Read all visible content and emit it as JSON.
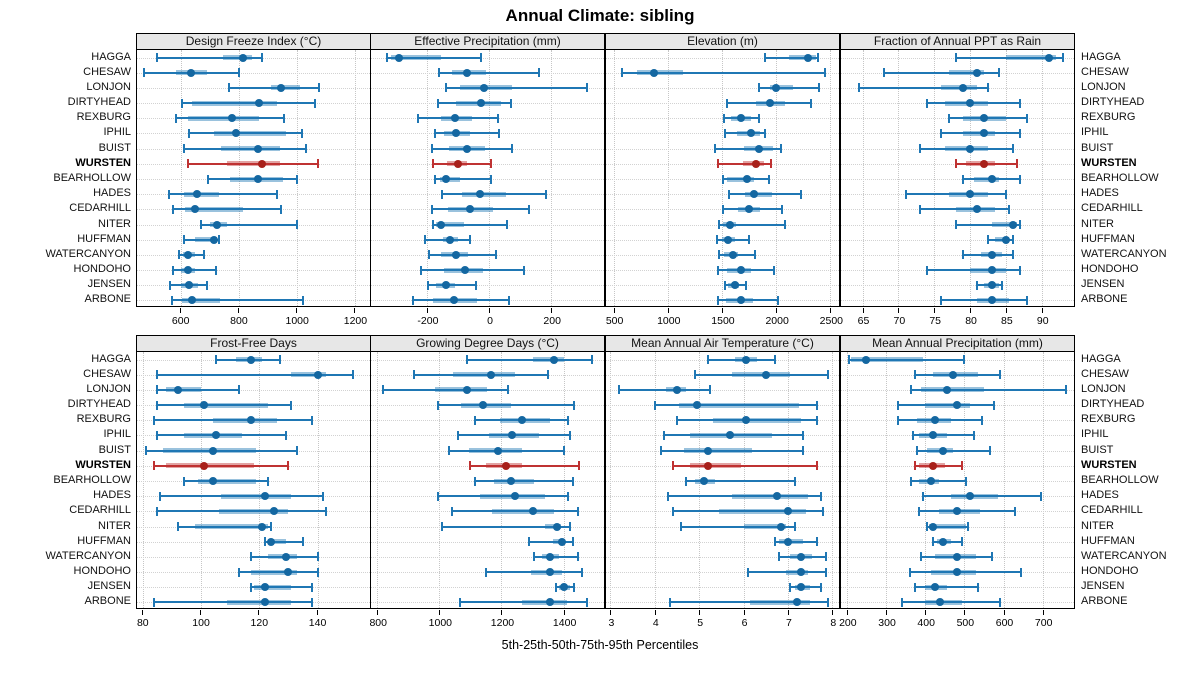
{
  "title": "Annual Climate: sibling",
  "caption": "5th-25th-50th-75th-95th Percentiles",
  "colors": {
    "normal_line": "#1f77b4",
    "normal_band": "rgba(31,119,180,0.45)",
    "normal_dot": "#1467a1",
    "highlight_line": "#bf3232",
    "highlight_band": "rgba(191,50,50,0.45)",
    "highlight_dot": "#a8201a",
    "header_bg": "#e7e7e7",
    "gridline": "#c6c6c6"
  },
  "sites": [
    "HAGGA",
    "CHESAW",
    "LONJON",
    "DIRTYHEAD",
    "REXBURG",
    "IPHIL",
    "BUIST",
    "WURSTEN",
    "BEARHOLLOW",
    "HADES",
    "CEDARHILL",
    "NITER",
    "HUFFMAN",
    "WATERCANYON",
    "HONDOHO",
    "JENSEN",
    "ARBONE"
  ],
  "highlight_site": "WURSTEN",
  "chart_data": {
    "type": "dotplot-percentiles",
    "percentile_labels": [
      "5th",
      "25th",
      "50th",
      "75th",
      "95th"
    ],
    "legend_position": "none",
    "grid": "dotted",
    "panels": [
      {
        "title": "Design Freeze Index (°C)",
        "row": 0,
        "col": 0,
        "xlim": [
          450,
          1250
        ],
        "ticks": [
          600,
          800,
          1000,
          1200
        ],
        "values": [
          [
            520,
            745,
            815,
            845,
            880
          ],
          [
            475,
            585,
            635,
            690,
            800
          ],
          [
            765,
            910,
            945,
            1010,
            1075
          ],
          [
            605,
            640,
            870,
            930,
            1060
          ],
          [
            585,
            625,
            775,
            870,
            955
          ],
          [
            630,
            715,
            790,
            960,
            1015
          ],
          [
            610,
            740,
            865,
            940,
            1030
          ],
          [
            625,
            760,
            880,
            940,
            1070
          ],
          [
            695,
            770,
            865,
            950,
            1000
          ],
          [
            560,
            610,
            655,
            730,
            930
          ],
          [
            575,
            615,
            650,
            815,
            945
          ],
          [
            670,
            700,
            725,
            760,
            1000
          ],
          [
            610,
            650,
            715,
            725,
            730
          ],
          [
            595,
            607,
            625,
            650,
            680
          ],
          [
            575,
            600,
            625,
            650,
            720
          ],
          [
            565,
            600,
            630,
            660,
            690
          ],
          [
            570,
            605,
            640,
            735,
            1020
          ]
        ]
      },
      {
        "title": "Effective Precipitation (mm)",
        "row": 0,
        "col": 1,
        "xlim": [
          -380,
          370
        ],
        "ticks": [
          -200,
          0,
          200
        ],
        "values": [
          [
            -330,
            -315,
            -290,
            -155,
            -25
          ],
          [
            -160,
            -120,
            -70,
            -10,
            160
          ],
          [
            -140,
            -95,
            -15,
            73,
            315
          ],
          [
            -165,
            -105,
            -25,
            38,
            70
          ],
          [
            -230,
            -155,
            -110,
            -55,
            28
          ],
          [
            -175,
            -145,
            -105,
            -60,
            33
          ],
          [
            -185,
            -128,
            -70,
            -13,
            73
          ],
          [
            -180,
            -135,
            -100,
            -70,
            5
          ],
          [
            -175,
            -158,
            -138,
            -93,
            5
          ],
          [
            -150,
            -86,
            -30,
            54,
            182
          ],
          [
            -185,
            -133,
            -60,
            12,
            130
          ],
          [
            -180,
            -170,
            -155,
            -80,
            59
          ],
          [
            -205,
            -148,
            -125,
            -100,
            -62
          ],
          [
            -192,
            -155,
            -105,
            -68,
            23
          ],
          [
            -220,
            -145,
            -78,
            -19,
            111
          ],
          [
            -195,
            -170,
            -138,
            -109,
            -42
          ],
          [
            -244,
            -180,
            -112,
            -40,
            64
          ]
        ]
      },
      {
        "title": "Elevation (m)",
        "row": 0,
        "col": 2,
        "xlim": [
          430,
          2580
        ],
        "ticks": [
          500,
          1000,
          1500,
          2000,
          2500
        ],
        "values": [
          [
            1900,
            2115,
            2295,
            2365,
            2385
          ],
          [
            575,
            720,
            870,
            1145,
            2455
          ],
          [
            1840,
            1945,
            1995,
            2155,
            2400
          ],
          [
            1545,
            1815,
            1940,
            2085,
            2325
          ],
          [
            1515,
            1585,
            1675,
            1770,
            1845
          ],
          [
            1525,
            1635,
            1765,
            1855,
            1900
          ],
          [
            1440,
            1705,
            1840,
            1975,
            2045
          ],
          [
            1460,
            1690,
            1810,
            1890,
            1950
          ],
          [
            1505,
            1545,
            1735,
            1800,
            1935
          ],
          [
            1565,
            1710,
            1800,
            1960,
            2230
          ],
          [
            1505,
            1645,
            1745,
            1855,
            2050
          ],
          [
            1470,
            1510,
            1575,
            1630,
            2085
          ],
          [
            1450,
            1500,
            1560,
            1620,
            1745
          ],
          [
            1470,
            1515,
            1600,
            1650,
            1805
          ],
          [
            1465,
            1545,
            1675,
            1770,
            1980
          ],
          [
            1530,
            1560,
            1620,
            1660,
            1725
          ],
          [
            1460,
            1540,
            1675,
            1785,
            2020
          ]
        ]
      },
      {
        "title": "Fraction of Annual PPT as Rain",
        "row": 0,
        "col": 3,
        "xlim": [
          62,
          94.5
        ],
        "ticks": [
          65,
          70,
          75,
          80,
          85,
          90
        ],
        "values": [
          [
            78,
            85,
            91,
            92,
            93
          ],
          [
            68,
            77,
            81,
            82,
            84
          ],
          [
            64.5,
            76,
            79,
            81,
            82.5
          ],
          [
            74,
            76.5,
            80,
            82.5,
            87
          ],
          [
            77,
            79,
            82,
            85,
            88
          ],
          [
            76,
            79,
            82,
            83.5,
            87
          ],
          [
            73,
            76.5,
            80,
            82.5,
            86
          ],
          [
            78,
            79.5,
            82,
            83.5,
            86.5
          ],
          [
            79,
            80.5,
            83,
            84,
            87
          ],
          [
            71,
            77,
            80,
            82.5,
            85
          ],
          [
            73,
            78,
            81,
            83.5,
            85.5
          ],
          [
            78,
            83,
            86,
            86.5,
            87
          ],
          [
            82.5,
            83.5,
            85,
            85.5,
            86
          ],
          [
            79,
            81.5,
            83,
            84.5,
            86
          ],
          [
            74,
            80,
            83,
            85,
            87
          ],
          [
            81,
            82,
            83,
            84,
            84.5
          ],
          [
            76,
            81,
            83,
            85.5,
            88
          ]
        ]
      },
      {
        "title": "Frost-Free Days",
        "row": 1,
        "col": 0,
        "xlim": [
          78,
          158
        ],
        "ticks": [
          80,
          100,
          120,
          140
        ],
        "values": [
          [
            105,
            112,
            117,
            121,
            127
          ],
          [
            85,
            131,
            140,
            143,
            152
          ],
          [
            85,
            88,
            92,
            100,
            113
          ],
          [
            85,
            94,
            101,
            123,
            131
          ],
          [
            84,
            104,
            117,
            126,
            138
          ],
          [
            85,
            94,
            105,
            114,
            129
          ],
          [
            81,
            87,
            104,
            119,
            133
          ],
          [
            84,
            88,
            101,
            118,
            130
          ],
          [
            94,
            99,
            104,
            119,
            123
          ],
          [
            86,
            107,
            122,
            131,
            142
          ],
          [
            85,
            106,
            125,
            130,
            143
          ],
          [
            92,
            98,
            121,
            123,
            124
          ],
          [
            122,
            123,
            124,
            129,
            135
          ],
          [
            117,
            123,
            129,
            133,
            140
          ],
          [
            113,
            117,
            130,
            133,
            140
          ],
          [
            117,
            118,
            122,
            131,
            138
          ],
          [
            84,
            109,
            122,
            131,
            138
          ]
        ]
      },
      {
        "title": "Growing Degree Days (°C)",
        "row": 1,
        "col": 1,
        "xlim": [
          780,
          1530
        ],
        "ticks": [
          800,
          1000,
          1200,
          1400
        ],
        "values": [
          [
            1090,
            1300,
            1370,
            1400,
            1490
          ],
          [
            920,
            1045,
            1165,
            1245,
            1350
          ],
          [
            820,
            985,
            1090,
            1155,
            1220
          ],
          [
            995,
            1070,
            1140,
            1230,
            1435
          ],
          [
            1115,
            1195,
            1265,
            1355,
            1415
          ],
          [
            1060,
            1160,
            1235,
            1320,
            1420
          ],
          [
            1030,
            1095,
            1190,
            1265,
            1400
          ],
          [
            1100,
            1150,
            1215,
            1265,
            1450
          ],
          [
            1115,
            1175,
            1230,
            1305,
            1430
          ],
          [
            995,
            1130,
            1245,
            1340,
            1415
          ],
          [
            1040,
            1170,
            1300,
            1370,
            1445
          ],
          [
            1010,
            1340,
            1380,
            1390,
            1420
          ],
          [
            1290,
            1365,
            1395,
            1400,
            1430
          ],
          [
            1305,
            1330,
            1355,
            1385,
            1445
          ],
          [
            1150,
            1295,
            1355,
            1395,
            1460
          ],
          [
            1375,
            1385,
            1400,
            1420,
            1435
          ],
          [
            1065,
            1265,
            1355,
            1410,
            1475
          ]
        ]
      },
      {
        "title": "Mean Annual Air Temperature (°C)",
        "row": 1,
        "col": 2,
        "xlim": [
          2.9,
          8.15
        ],
        "ticks": [
          3,
          4,
          5,
          6,
          7,
          8
        ],
        "values": [
          [
            5.2,
            5.8,
            6.05,
            6.3,
            6.7
          ],
          [
            4.9,
            5.75,
            6.5,
            7.05,
            7.9
          ],
          [
            3.2,
            4.25,
            4.5,
            4.7,
            5.25
          ],
          [
            4.0,
            4.55,
            4.95,
            7.25,
            7.65
          ],
          [
            4.5,
            5.3,
            6.05,
            7.3,
            7.65
          ],
          [
            4.2,
            4.8,
            5.7,
            6.65,
            7.35
          ],
          [
            4.15,
            4.65,
            5.2,
            6.2,
            7.35
          ],
          [
            4.4,
            4.8,
            5.2,
            5.95,
            7.65
          ],
          [
            4.7,
            4.9,
            5.1,
            5.35,
            7.15
          ],
          [
            4.3,
            5.75,
            6.75,
            7.45,
            7.75
          ],
          [
            4.4,
            5.45,
            7.0,
            7.4,
            7.8
          ],
          [
            4.6,
            6.0,
            6.85,
            6.95,
            7.15
          ],
          [
            6.7,
            6.8,
            7.0,
            7.35,
            7.65
          ],
          [
            6.8,
            7.05,
            7.3,
            7.55,
            7.85
          ],
          [
            6.1,
            6.95,
            7.3,
            7.45,
            7.85
          ],
          [
            7.05,
            7.15,
            7.3,
            7.5,
            7.75
          ],
          [
            4.35,
            6.15,
            7.2,
            7.5,
            7.9
          ]
        ]
      },
      {
        "title": "Mean Annual Precipitation (mm)",
        "row": 1,
        "col": 3,
        "xlim": [
          185,
          780
        ],
        "ticks": [
          200,
          300,
          400,
          500,
          600,
          700
        ],
        "values": [
          [
            205,
            210,
            250,
            395,
            500
          ],
          [
            375,
            420,
            470,
            535,
            590
          ],
          [
            365,
            390,
            455,
            550,
            760
          ],
          [
            330,
            400,
            480,
            515,
            575
          ],
          [
            330,
            380,
            425,
            465,
            545
          ],
          [
            370,
            385,
            420,
            455,
            525
          ],
          [
            380,
            405,
            445,
            470,
            565
          ],
          [
            375,
            385,
            420,
            450,
            495
          ],
          [
            365,
            385,
            415,
            435,
            505
          ],
          [
            395,
            465,
            515,
            585,
            695
          ],
          [
            385,
            435,
            480,
            540,
            630
          ],
          [
            405,
            410,
            420,
            505,
            510
          ],
          [
            420,
            430,
            445,
            465,
            495
          ],
          [
            390,
            425,
            480,
            530,
            570
          ],
          [
            360,
            415,
            480,
            530,
            645
          ],
          [
            375,
            400,
            425,
            455,
            535
          ],
          [
            340,
            400,
            438,
            493,
            590
          ]
        ]
      }
    ]
  }
}
